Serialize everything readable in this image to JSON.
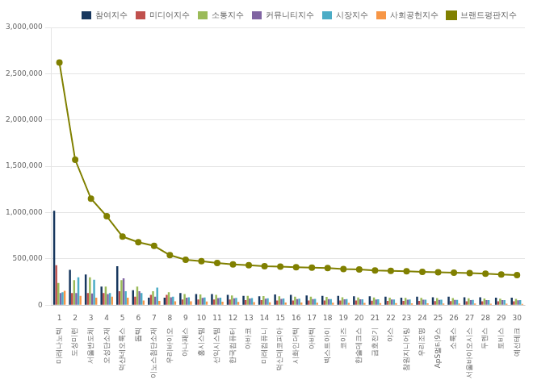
{
  "chart_data": {
    "type": "bar",
    "categories": [
      "1",
      "2",
      "3",
      "4",
      "5",
      "6",
      "7",
      "8",
      "9",
      "10",
      "11",
      "12",
      "13",
      "14",
      "15",
      "16",
      "17",
      "18",
      "19",
      "20",
      "21",
      "22",
      "23",
      "24",
      "25",
      "26",
      "27",
      "28",
      "29",
      "30"
    ],
    "annotations": [
      "미래나노텍",
      "도성미련",
      "서울반도체",
      "오성단소재",
      "덕산네오룩스",
      "돕텍",
      "이노스첨단소재",
      "우리바이오",
      "아나패스",
      "홍시스템",
      "선익시스템",
      "한국컴퓨터",
      "아바코",
      "미래컴퓨니",
      "덕신데코피아",
      "시화인더텍",
      "아바텍",
      "벡스트아이",
      "코이즈",
      "한솔데크스",
      "금호전기",
      "야스",
      "참원지니어링",
      "우리조명",
      "ApS멀티9스",
      "소룩스",
      "서울바이오시스",
      "두멘스",
      "토비스",
      "예선테크"
    ],
    "series": [
      {
        "name": "참여지수",
        "color": "#17375e",
        "values": [
          1020000,
          380000,
          330000,
          200000,
          420000,
          160000,
          80000,
          80000,
          130000,
          120000,
          120000,
          110000,
          100000,
          95000,
          115000,
          110000,
          105000,
          100000,
          100000,
          95000,
          95000,
          90000,
          80000,
          90000,
          85000,
          90000,
          85000,
          85000,
          80000,
          80000
        ]
      },
      {
        "name": "미디어지수",
        "color": "#c0504d",
        "values": [
          430000,
          130000,
          130000,
          130000,
          150000,
          90000,
          110000,
          110000,
          60000,
          60000,
          60000,
          60000,
          55000,
          55000,
          50000,
          50000,
          50000,
          50000,
          50000,
          50000,
          48000,
          45000,
          45000,
          45000,
          44000,
          43000,
          42000,
          42000,
          40000,
          40000
        ]
      },
      {
        "name": "소통지수",
        "color": "#9bbb59",
        "values": [
          240000,
          270000,
          300000,
          200000,
          270000,
          200000,
          150000,
          140000,
          120000,
          115000,
          110000,
          105000,
          100000,
          98000,
          95000,
          92000,
          90000,
          88000,
          85000,
          83000,
          82000,
          80000,
          78000,
          78000,
          76000,
          75000,
          73000,
          72000,
          70000,
          68000
        ]
      },
      {
        "name": "커뮤니티지수",
        "color": "#8064a2",
        "values": [
          130000,
          130000,
          125000,
          120000,
          290000,
          150000,
          90000,
          85000,
          80000,
          78000,
          76000,
          74000,
          72000,
          70000,
          68000,
          66000,
          65000,
          64000,
          63000,
          62000,
          61000,
          60000,
          59000,
          58000,
          57000,
          56000,
          55000,
          54000,
          53000,
          52000
        ]
      },
      {
        "name": "시장지수",
        "color": "#4bacc6",
        "values": [
          140000,
          300000,
          275000,
          130000,
          150000,
          130000,
          190000,
          90000,
          85000,
          82000,
          80000,
          78000,
          76000,
          74000,
          72000,
          70000,
          68000,
          66000,
          64000,
          63000,
          62000,
          61000,
          60000,
          59000,
          58000,
          57000,
          56000,
          55000,
          54000,
          53000
        ]
      },
      {
        "name": "사회공헌지수",
        "color": "#f79646",
        "values": [
          155000,
          100000,
          80000,
          90000,
          80000,
          50000,
          45000,
          42000,
          40000,
          38000,
          36000,
          34000,
          32000,
          30000,
          28000,
          27000,
          26000,
          25000,
          24000,
          23000,
          22000,
          21000,
          20000,
          19000,
          18000,
          17000,
          16000,
          15000,
          14000,
          13000
        ]
      },
      {
        "name": "브랜드평판지수",
        "type": "line",
        "color": "#808000",
        "marker": "o",
        "values": [
          2620000,
          1570000,
          1150000,
          960000,
          740000,
          680000,
          640000,
          540000,
          490000,
          475000,
          455000,
          440000,
          430000,
          420000,
          415000,
          410000,
          405000,
          400000,
          390000,
          385000,
          375000,
          370000,
          365000,
          360000,
          355000,
          350000,
          345000,
          340000,
          330000,
          325000
        ]
      }
    ],
    "ylim": [
      0,
      3000000
    ],
    "yticks": [
      0,
      {
        "value": 500000,
        "label": "500,000"
      },
      {
        "value": 1000000,
        "label": "1,000,000"
      },
      {
        "value": 1500000,
        "label": "1,500,000"
      },
      {
        "value": 2000000,
        "label": "2,000,000"
      },
      {
        "value": 2500000,
        "label": "2,500,000"
      },
      {
        "value": 3000000,
        "label": "3,000,000"
      }
    ],
    "grid": true,
    "legend": "upper right"
  }
}
